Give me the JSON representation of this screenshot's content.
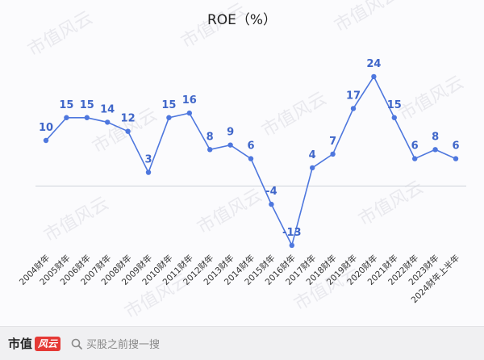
{
  "chart_data": {
    "type": "line",
    "title": "ROE（%）",
    "categories": [
      "2004财年",
      "2005财年",
      "2006财年",
      "2007财年",
      "2008财年",
      "2009财年",
      "2010财年",
      "2011财年",
      "2012财年",
      "2013财年",
      "2014财年",
      "2015财年",
      "2016财年",
      "2017财年",
      "2018财年",
      "2019财年",
      "2020财年",
      "2021财年",
      "2022财年",
      "2023财年",
      "2024财年上半年"
    ],
    "series": [
      {
        "values": [
          10,
          15,
          15,
          14,
          12,
          3,
          15,
          16,
          8,
          9,
          6,
          -4,
          -13,
          4,
          7,
          17,
          24,
          15,
          6,
          8,
          6
        ]
      }
    ],
    "data_labels": [
      "10",
      "15",
      "15",
      "14",
      "12",
      "3",
      "15",
      "16",
      "8",
      "9",
      "6",
      "-4",
      "-13",
      "4",
      "7",
      "17",
      "24",
      "15",
      "6",
      "8",
      "6"
    ],
    "ylim": [
      -13,
      24
    ],
    "grid": false,
    "line_color": "#4e77de"
  },
  "footer": {
    "brand_text": "市值",
    "brand_mark": "风云",
    "search_placeholder": "买股之前搜一搜"
  },
  "watermark": "市值风云"
}
